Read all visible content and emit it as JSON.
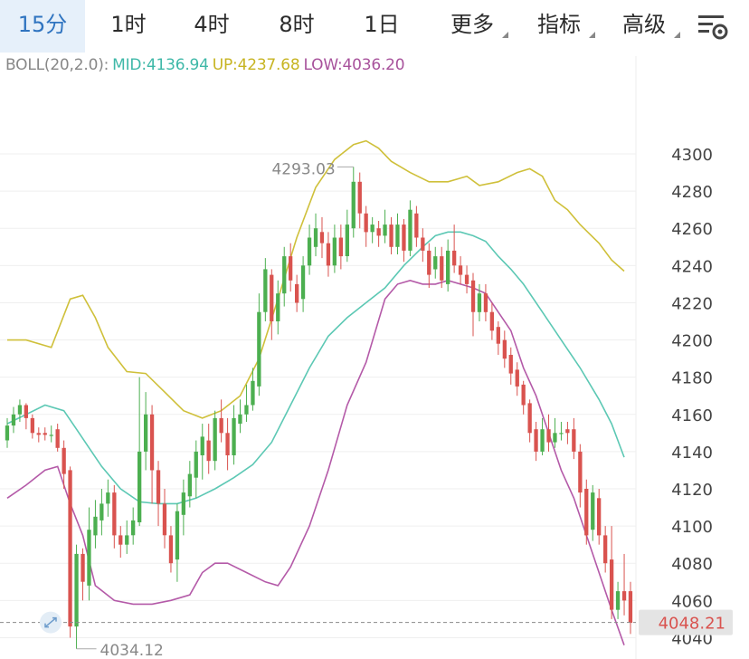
{
  "tabs": [
    {
      "label": "15分",
      "active": true
    },
    {
      "label": "1时"
    },
    {
      "label": "4时"
    },
    {
      "label": "8时"
    },
    {
      "label": "1日"
    },
    {
      "label": "更多",
      "dropdown": true
    },
    {
      "label": "指标",
      "dropdown": true
    },
    {
      "label": "高级",
      "dropdown": true
    }
  ],
  "settings_icon": "chart-settings-icon",
  "legend": {
    "name": "BOLL(20,2.0):",
    "mid": "MID:4136.94",
    "up": "UP:4237.68",
    "low": "LOW:4036.20"
  },
  "colors": {
    "up_candle": "#4caf50",
    "down_candle": "#d9534f",
    "mid_line": "#5cc8b4",
    "up_line": "#cfc03a",
    "low_line": "#b45aa8",
    "active_tab": "#2f74c0",
    "legend_name": "#888888"
  },
  "chart_data": {
    "type": "candlestick",
    "interval": "15分",
    "indicator": "BOLL(20,2.0)",
    "y_ticks": [
      "4300",
      "4280",
      "4260",
      "4240",
      "4220",
      "4200",
      "4180",
      "4160",
      "4140",
      "4120",
      "4100",
      "4080",
      "4060",
      "4040"
    ],
    "ylim": [
      4035,
      4310
    ],
    "annotations": {
      "high_label": "4293.03",
      "low_label": "4034.12"
    },
    "current_price": "4048.21",
    "candles": [
      {
        "o": 4146,
        "c": 4154,
        "h": 4158,
        "l": 4142
      },
      {
        "o": 4154,
        "c": 4160,
        "h": 4164,
        "l": 4150
      },
      {
        "o": 4160,
        "c": 4165,
        "h": 4168,
        "l": 4156
      },
      {
        "o": 4165,
        "c": 4158,
        "h": 4166,
        "l": 4152
      },
      {
        "o": 4158,
        "c": 4150,
        "h": 4160,
        "l": 4147
      },
      {
        "o": 4150,
        "c": 4149,
        "h": 4153,
        "l": 4145
      },
      {
        "o": 4150,
        "c": 4149,
        "h": 4153,
        "l": 4146
      },
      {
        "o": 4149,
        "c": 4149,
        "h": 4154,
        "l": 4145
      },
      {
        "o": 4152,
        "c": 4142,
        "h": 4155,
        "l": 4140
      },
      {
        "o": 4142,
        "c": 4128,
        "h": 4146,
        "l": 4120
      },
      {
        "o": 4130,
        "c": 4046,
        "h": 4132,
        "l": 4040
      },
      {
        "o": 4046,
        "c": 4085,
        "h": 4090,
        "l": 4034
      },
      {
        "o": 4085,
        "c": 4070,
        "h": 4088,
        "l": 4060
      },
      {
        "o": 4068,
        "c": 4098,
        "h": 4110,
        "l": 4060
      },
      {
        "o": 4095,
        "c": 4105,
        "h": 4114,
        "l": 4088
      },
      {
        "o": 4103,
        "c": 4112,
        "h": 4120,
        "l": 4095
      },
      {
        "o": 4112,
        "c": 4118,
        "h": 4125,
        "l": 4105
      },
      {
        "o": 4118,
        "c": 4095,
        "h": 4122,
        "l": 4088
      },
      {
        "o": 4095,
        "c": 4090,
        "h": 4100,
        "l": 4083
      },
      {
        "o": 4090,
        "c": 4095,
        "h": 4103,
        "l": 4085
      },
      {
        "o": 4095,
        "c": 4103,
        "h": 4110,
        "l": 4090
      },
      {
        "o": 4102,
        "c": 4140,
        "h": 4180,
        "l": 4100
      },
      {
        "o": 4140,
        "c": 4160,
        "h": 4172,
        "l": 4130
      },
      {
        "o": 4160,
        "c": 4130,
        "h": 4165,
        "l": 4112
      },
      {
        "o": 4130,
        "c": 4112,
        "h": 4135,
        "l": 4100
      },
      {
        "o": 4112,
        "c": 4095,
        "h": 4120,
        "l": 4088
      },
      {
        "o": 4095,
        "c": 4080,
        "h": 4100,
        "l": 4075
      },
      {
        "o": 4082,
        "c": 4108,
        "h": 4112,
        "l": 4070
      },
      {
        "o": 4106,
        "c": 4118,
        "h": 4125,
        "l": 4095
      },
      {
        "o": 4116,
        "c": 4128,
        "h": 4135,
        "l": 4110
      },
      {
        "o": 4126,
        "c": 4140,
        "h": 4146,
        "l": 4115
      },
      {
        "o": 4138,
        "c": 4148,
        "h": 4155,
        "l": 4125
      },
      {
        "o": 4146,
        "c": 4135,
        "h": 4155,
        "l": 4128
      },
      {
        "o": 4135,
        "c": 4158,
        "h": 4162,
        "l": 4130
      },
      {
        "o": 4158,
        "c": 4150,
        "h": 4168,
        "l": 4145
      },
      {
        "o": 4150,
        "c": 4138,
        "h": 4158,
        "l": 4130
      },
      {
        "o": 4138,
        "c": 4158,
        "h": 4165,
        "l": 4133
      },
      {
        "o": 4155,
        "c": 4160,
        "h": 4168,
        "l": 4150
      },
      {
        "o": 4160,
        "c": 4165,
        "h": 4176,
        "l": 4156
      },
      {
        "o": 4165,
        "c": 4178,
        "h": 4185,
        "l": 4162
      },
      {
        "o": 4175,
        "c": 4215,
        "h": 4225,
        "l": 4170
      },
      {
        "o": 4215,
        "c": 4238,
        "h": 4244,
        "l": 4210
      },
      {
        "o": 4235,
        "c": 4210,
        "h": 4238,
        "l": 4200
      },
      {
        "o": 4210,
        "c": 4225,
        "h": 4232,
        "l": 4203
      },
      {
        "o": 4225,
        "c": 4245,
        "h": 4250,
        "l": 4218
      },
      {
        "o": 4245,
        "c": 4232,
        "h": 4252,
        "l": 4226
      },
      {
        "o": 4230,
        "c": 4220,
        "h": 4235,
        "l": 4215
      },
      {
        "o": 4222,
        "c": 4240,
        "h": 4245,
        "l": 4215
      },
      {
        "o": 4240,
        "c": 4255,
        "h": 4262,
        "l": 4235
      },
      {
        "o": 4250,
        "c": 4260,
        "h": 4268,
        "l": 4245
      },
      {
        "o": 4258,
        "c": 4252,
        "h": 4266,
        "l": 4244
      },
      {
        "o": 4252,
        "c": 4240,
        "h": 4258,
        "l": 4234
      },
      {
        "o": 4240,
        "c": 4255,
        "h": 4262,
        "l": 4236
      },
      {
        "o": 4255,
        "c": 4245,
        "h": 4262,
        "l": 4238
      },
      {
        "o": 4245,
        "c": 4262,
        "h": 4270,
        "l": 4242
      },
      {
        "o": 4260,
        "c": 4285,
        "h": 4293,
        "l": 4255
      },
      {
        "o": 4285,
        "c": 4268,
        "h": 4290,
        "l": 4260
      },
      {
        "o": 4268,
        "c": 4258,
        "h": 4272,
        "l": 4250
      },
      {
        "o": 4258,
        "c": 4262,
        "h": 4266,
        "l": 4252
      },
      {
        "o": 4260,
        "c": 4256,
        "h": 4264,
        "l": 4250
      },
      {
        "o": 4256,
        "c": 4262,
        "h": 4270,
        "l": 4252
      },
      {
        "o": 4262,
        "c": 4250,
        "h": 4266,
        "l": 4246
      },
      {
        "o": 4250,
        "c": 4262,
        "h": 4268,
        "l": 4246
      },
      {
        "o": 4262,
        "c": 4248,
        "h": 4265,
        "l": 4242
      },
      {
        "o": 4248,
        "c": 4270,
        "h": 4275,
        "l": 4245
      },
      {
        "o": 4268,
        "c": 4255,
        "h": 4272,
        "l": 4250
      },
      {
        "o": 4255,
        "c": 4248,
        "h": 4260,
        "l": 4242
      },
      {
        "o": 4248,
        "c": 4235,
        "h": 4252,
        "l": 4228
      },
      {
        "o": 4238,
        "c": 4245,
        "h": 4250,
        "l": 4233
      },
      {
        "o": 4245,
        "c": 4232,
        "h": 4250,
        "l": 4228
      },
      {
        "o": 4230,
        "c": 4248,
        "h": 4254,
        "l": 4226
      },
      {
        "o": 4248,
        "c": 4240,
        "h": 4262,
        "l": 4236
      },
      {
        "o": 4240,
        "c": 4235,
        "h": 4245,
        "l": 4230
      },
      {
        "o": 4235,
        "c": 4230,
        "h": 4240,
        "l": 4225
      },
      {
        "o": 4232,
        "c": 4215,
        "h": 4236,
        "l": 4202
      },
      {
        "o": 4215,
        "c": 4225,
        "h": 4230,
        "l": 4210
      },
      {
        "o": 4225,
        "c": 4215,
        "h": 4230,
        "l": 4210
      },
      {
        "o": 4215,
        "c": 4205,
        "h": 4220,
        "l": 4200
      },
      {
        "o": 4207,
        "c": 4198,
        "h": 4210,
        "l": 4192
      },
      {
        "o": 4200,
        "c": 4190,
        "h": 4205,
        "l": 4185
      },
      {
        "o": 4192,
        "c": 4182,
        "h": 4196,
        "l": 4176
      },
      {
        "o": 4184,
        "c": 4175,
        "h": 4188,
        "l": 4170
      },
      {
        "o": 4176,
        "c": 4165,
        "h": 4178,
        "l": 4160
      },
      {
        "o": 4166,
        "c": 4150,
        "h": 4168,
        "l": 4145
      },
      {
        "o": 4152,
        "c": 4140,
        "h": 4156,
        "l": 4135
      },
      {
        "o": 4140,
        "c": 4152,
        "h": 4158,
        "l": 4138
      },
      {
        "o": 4152,
        "c": 4145,
        "h": 4160,
        "l": 4140
      },
      {
        "o": 4145,
        "c": 4150,
        "h": 4158,
        "l": 4142
      },
      {
        "o": 4150,
        "c": 4150,
        "h": 4156,
        "l": 4146
      },
      {
        "o": 4152,
        "c": 4150,
        "h": 4156,
        "l": 4144
      },
      {
        "o": 4152,
        "c": 4140,
        "h": 4158,
        "l": 4136
      },
      {
        "o": 4140,
        "c": 4118,
        "h": 4144,
        "l": 4110
      },
      {
        "o": 4120,
        "c": 4095,
        "h": 4125,
        "l": 4090
      },
      {
        "o": 4098,
        "c": 4118,
        "h": 4122,
        "l": 4092
      },
      {
        "o": 4115,
        "c": 4095,
        "h": 4120,
        "l": 4090
      },
      {
        "o": 4095,
        "c": 4080,
        "h": 4100,
        "l": 4075
      },
      {
        "o": 4082,
        "c": 4055,
        "h": 4100,
        "l": 4050
      },
      {
        "o": 4055,
        "c": 4065,
        "h": 4070,
        "l": 4050
      },
      {
        "o": 4065,
        "c": 4060,
        "h": 4085,
        "l": 4052
      },
      {
        "o": 4065,
        "c": 4048,
        "h": 4070,
        "l": 4042
      }
    ],
    "boll_up": [
      [
        0,
        4200
      ],
      [
        3,
        4200
      ],
      [
        7,
        4196
      ],
      [
        10,
        4222
      ],
      [
        12,
        4224
      ],
      [
        14,
        4212
      ],
      [
        16,
        4196
      ],
      [
        19,
        4183
      ],
      [
        22,
        4182
      ],
      [
        25,
        4172
      ],
      [
        28,
        4162
      ],
      [
        31,
        4158
      ],
      [
        34,
        4162
      ],
      [
        37,
        4170
      ],
      [
        40,
        4190
      ],
      [
        43,
        4222
      ],
      [
        46,
        4255
      ],
      [
        49,
        4282
      ],
      [
        52,
        4297
      ],
      [
        55,
        4305
      ],
      [
        57,
        4307
      ],
      [
        59,
        4303
      ],
      [
        61,
        4296
      ],
      [
        64,
        4290
      ],
      [
        67,
        4285
      ],
      [
        70,
        4285
      ],
      [
        73,
        4288
      ],
      [
        75,
        4283
      ],
      [
        78,
        4285
      ],
      [
        81,
        4290
      ],
      [
        83,
        4292
      ],
      [
        85,
        4288
      ],
      [
        87,
        4275
      ],
      [
        89,
        4270
      ],
      [
        91,
        4262
      ],
      [
        94,
        4252
      ],
      [
        96,
        4243
      ],
      [
        98,
        4237
      ]
    ],
    "boll_mid": [
      [
        0,
        4155
      ],
      [
        3,
        4160
      ],
      [
        6,
        4165
      ],
      [
        9,
        4162
      ],
      [
        11,
        4152
      ],
      [
        13,
        4142
      ],
      [
        15,
        4132
      ],
      [
        18,
        4120
      ],
      [
        21,
        4113
      ],
      [
        24,
        4112
      ],
      [
        27,
        4112
      ],
      [
        30,
        4115
      ],
      [
        33,
        4120
      ],
      [
        36,
        4126
      ],
      [
        39,
        4133
      ],
      [
        42,
        4145
      ],
      [
        45,
        4165
      ],
      [
        48,
        4185
      ],
      [
        51,
        4202
      ],
      [
        54,
        4212
      ],
      [
        57,
        4220
      ],
      [
        60,
        4228
      ],
      [
        63,
        4240
      ],
      [
        66,
        4250
      ],
      [
        68,
        4256
      ],
      [
        70,
        4258
      ],
      [
        72,
        4258
      ],
      [
        74,
        4256
      ],
      [
        76,
        4253
      ],
      [
        78,
        4245
      ],
      [
        80,
        4238
      ],
      [
        82,
        4230
      ],
      [
        85,
        4215
      ],
      [
        88,
        4200
      ],
      [
        91,
        4185
      ],
      [
        94,
        4168
      ],
      [
        96,
        4155
      ],
      [
        98,
        4137
      ]
    ],
    "boll_low": [
      [
        0,
        4115
      ],
      [
        3,
        4122
      ],
      [
        6,
        4130
      ],
      [
        8,
        4132
      ],
      [
        10,
        4112
      ],
      [
        12,
        4095
      ],
      [
        14,
        4068
      ],
      [
        17,
        4060
      ],
      [
        20,
        4058
      ],
      [
        23,
        4058
      ],
      [
        26,
        4060
      ],
      [
        29,
        4063
      ],
      [
        31,
        4075
      ],
      [
        33,
        4080
      ],
      [
        35,
        4080
      ],
      [
        38,
        4075
      ],
      [
        41,
        4070
      ],
      [
        43,
        4068
      ],
      [
        45,
        4078
      ],
      [
        48,
        4100
      ],
      [
        51,
        4130
      ],
      [
        54,
        4165
      ],
      [
        57,
        4188
      ],
      [
        60,
        4222
      ],
      [
        62,
        4230
      ],
      [
        64,
        4232
      ],
      [
        66,
        4230
      ],
      [
        68,
        4230
      ],
      [
        70,
        4232
      ],
      [
        72,
        4230
      ],
      [
        74,
        4228
      ],
      [
        76,
        4225
      ],
      [
        78,
        4215
      ],
      [
        80,
        4205
      ],
      [
        82,
        4185
      ],
      [
        84,
        4170
      ],
      [
        86,
        4150
      ],
      [
        88,
        4130
      ],
      [
        90,
        4115
      ],
      [
        92,
        4095
      ],
      [
        94,
        4075
      ],
      [
        96,
        4055
      ],
      [
        98,
        4036
      ]
    ]
  }
}
